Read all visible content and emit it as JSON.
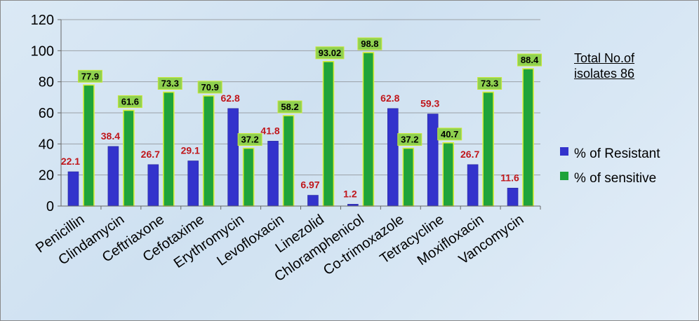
{
  "chart_data": {
    "type": "bar",
    "categories": [
      "Penicillin",
      "Clindamycin",
      "Ceftriaxone",
      "Cefotaxime",
      "Erythromycin",
      "Levofloxacin",
      "Linezolid",
      "Chloramphenicol",
      "Co-trimoxazole",
      "Tetracycline",
      "Moxifloxacin",
      "Vancomycin"
    ],
    "series": [
      {
        "name": "% of Resistant",
        "color": "#3333cc",
        "values": [
          22.1,
          38.4,
          26.7,
          29.1,
          62.8,
          41.8,
          6.97,
          1.2,
          62.8,
          59.3,
          26.7,
          11.6
        ],
        "labels": [
          "22.1",
          "38.4",
          "26.7",
          "29.1",
          "62.8",
          "41.8",
          "6.97",
          "1.2",
          "62.8",
          "59.3",
          "26.7",
          "11.6"
        ]
      },
      {
        "name": "% of sensitive",
        "color": "#1fa33a",
        "values": [
          77.9,
          61.6,
          73.3,
          70.9,
          37.2,
          58.2,
          93.02,
          98.8,
          37.2,
          40.7,
          73.3,
          88.4
        ],
        "labels": [
          "77.9",
          "61.6",
          "73.3",
          "70.9",
          "37.2",
          "58.2",
          "93.02",
          "98.8",
          "37.2",
          "40.7",
          "73.3",
          "88.4"
        ]
      }
    ],
    "ylim": [
      0,
      120
    ],
    "yticks": [
      "0",
      "20",
      "40",
      "60",
      "80",
      "100",
      "120"
    ],
    "grid": true,
    "legend_position": "right",
    "label_box_color": "#8fd14f",
    "resistant_label_color": "#c0161b"
  },
  "note": {
    "line1": "Total No.of",
    "line2": "isolates 86"
  }
}
